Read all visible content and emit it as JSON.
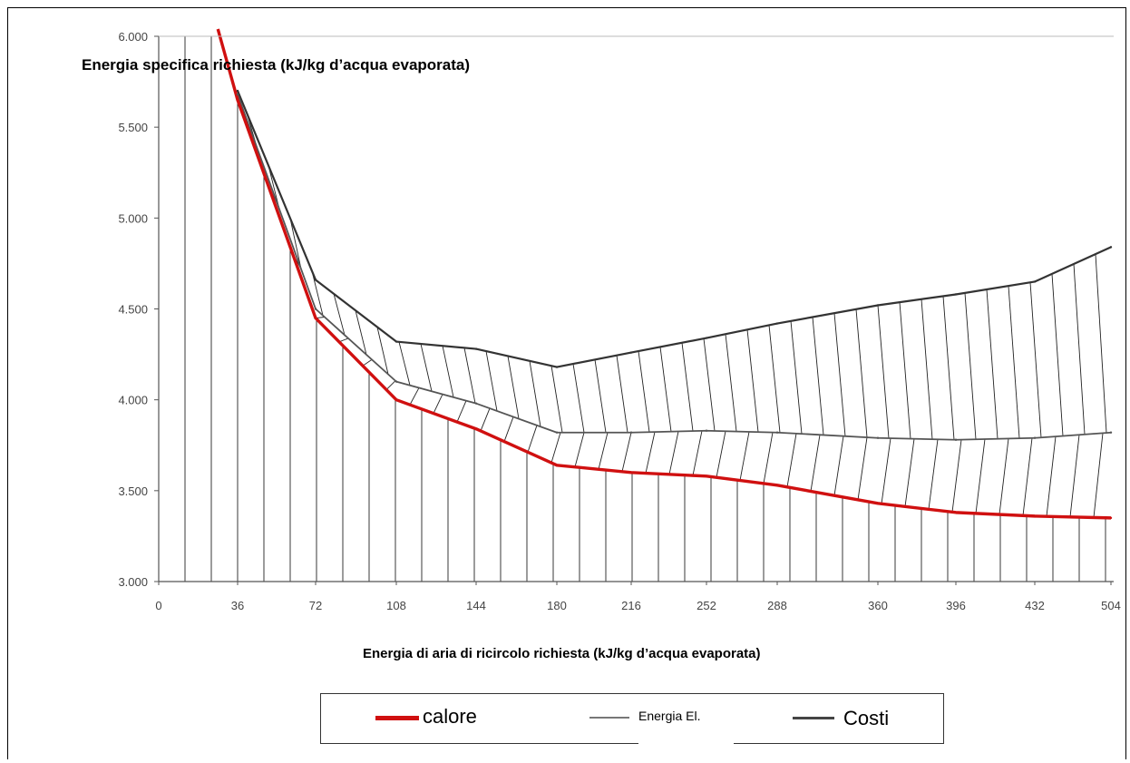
{
  "chart_data": {
    "type": "line",
    "title": "Energia specifica richiesta (kJ/kg d’acqua evaporata)",
    "xlabel": "Energia di aria di ricircolo richiesta (kJ/kg d’acqua evaporata)",
    "ylabel": "",
    "y_ticks": [
      "3.000",
      "3.500",
      "4.000",
      "4.500",
      "5.000",
      "5.500",
      "6.000"
    ],
    "y_tick_values": [
      3000,
      3500,
      4000,
      4500,
      5000,
      5500,
      6000
    ],
    "x_ticks": [
      "0",
      "36",
      "72",
      "108",
      "144",
      "180",
      "216",
      "252",
      "288",
      "360",
      "396",
      "432",
      "504"
    ],
    "ylim": [
      3000,
      6000
    ],
    "grid": false,
    "legend_position": "bottom",
    "series": [
      {
        "name": "calore",
        "color": "#d01010",
        "x": [
          "36",
          "72",
          "108",
          "144",
          "180",
          "216",
          "252",
          "288",
          "360",
          "396",
          "432",
          "504"
        ],
        "values": [
          5650,
          4450,
          4000,
          3840,
          3640,
          3600,
          3580,
          3530,
          3430,
          3380,
          3360,
          3350
        ],
        "extra_start": {
          "x": "27",
          "value": 6040
        }
      },
      {
        "name": "Energia El.",
        "color": "#555555",
        "x": [
          "36",
          "72",
          "108",
          "144",
          "180",
          "216",
          "252",
          "288",
          "360",
          "396",
          "432",
          "504"
        ],
        "values": [
          5680,
          4500,
          4100,
          3980,
          3820,
          3820,
          3830,
          3820,
          3790,
          3780,
          3790,
          3820
        ]
      },
      {
        "name": "Costi",
        "color": "#333333",
        "x": [
          "36",
          "72",
          "108",
          "144",
          "180",
          "216",
          "252",
          "288",
          "360",
          "396",
          "432",
          "504"
        ],
        "values": [
          5700,
          4660,
          4320,
          4280,
          4180,
          4260,
          4340,
          4420,
          4520,
          4580,
          4650,
          4840
        ]
      }
    ]
  },
  "legend": {
    "items": [
      {
        "label": "calore",
        "color": "#d01010"
      },
      {
        "label": "Energia El.",
        "color": "#777777"
      },
      {
        "label": "Costi",
        "color": "#444444"
      }
    ]
  }
}
